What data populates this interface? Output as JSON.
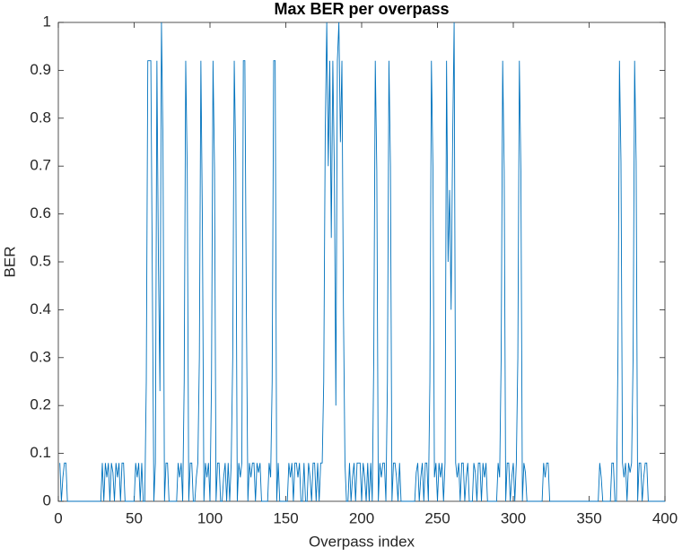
{
  "chart_data": {
    "type": "line",
    "title": "Max BER per overpass",
    "xlabel": "Overpass index",
    "ylabel": "BER",
    "x": [
      1,
      2,
      3,
      4,
      5,
      6,
      7,
      8,
      9,
      10,
      11,
      12,
      13,
      14,
      15,
      16,
      17,
      18,
      19,
      20,
      21,
      22,
      23,
      24,
      25,
      26,
      27,
      28,
      29,
      30,
      31,
      32,
      33,
      34,
      35,
      36,
      37,
      38,
      39,
      40,
      41,
      42,
      43,
      44,
      45,
      46,
      47,
      48,
      49,
      50,
      51,
      52,
      53,
      54,
      55,
      56,
      57,
      58,
      59,
      60,
      61,
      62,
      63,
      64,
      65,
      66,
      67,
      68,
      69,
      70,
      71,
      72,
      73,
      74,
      75,
      76,
      77,
      78,
      79,
      80,
      81,
      82,
      83,
      84,
      85,
      86,
      87,
      88,
      89,
      90,
      91,
      92,
      93,
      94,
      95,
      96,
      97,
      98,
      99,
      100,
      101,
      102,
      103,
      104,
      105,
      106,
      107,
      108,
      109,
      110,
      111,
      112,
      113,
      114,
      115,
      116,
      117,
      118,
      119,
      120,
      121,
      122,
      123,
      124,
      125,
      126,
      127,
      128,
      129,
      130,
      131,
      132,
      133,
      134,
      135,
      136,
      137,
      138,
      139,
      140,
      141,
      142,
      143,
      144,
      145,
      146,
      147,
      148,
      149,
      150,
      151,
      152,
      153,
      154,
      155,
      156,
      157,
      158,
      159,
      160,
      161,
      162,
      163,
      164,
      165,
      166,
      167,
      168,
      169,
      170,
      171,
      172,
      173,
      174,
      175,
      176,
      177,
      178,
      179,
      180,
      181,
      182,
      183,
      184,
      185,
      186,
      187,
      188,
      189,
      190,
      191,
      192,
      193,
      194,
      195,
      196,
      197,
      198,
      199,
      200,
      201,
      202,
      203,
      204,
      205,
      206,
      207,
      208,
      209,
      210,
      211,
      212,
      213,
      214,
      215,
      216,
      217,
      218,
      219,
      220,
      221,
      222,
      223,
      224,
      225,
      226,
      227,
      228,
      229,
      230,
      231,
      232,
      233,
      234,
      235,
      236,
      237,
      238,
      239,
      240,
      241,
      242,
      243,
      244,
      245,
      246,
      247,
      248,
      249,
      250,
      251,
      252,
      253,
      254,
      255,
      256,
      257,
      258,
      259,
      260,
      261,
      262,
      263,
      264,
      265,
      266,
      267,
      268,
      269,
      270,
      271,
      272,
      273,
      274,
      275,
      276,
      277,
      278,
      279,
      280,
      281,
      282,
      283,
      284,
      285,
      286,
      287,
      288,
      289,
      290,
      291,
      292,
      293,
      294,
      295,
      296,
      297,
      298,
      299,
      300,
      301,
      302,
      303,
      304,
      305,
      306,
      307,
      308,
      309,
      310,
      311,
      312,
      313,
      314,
      315,
      316,
      317,
      318,
      319,
      320,
      321,
      322,
      323,
      324,
      325,
      326,
      327,
      328,
      329,
      330,
      331,
      332,
      333,
      334,
      335,
      336,
      337,
      338,
      339,
      340,
      341,
      342,
      343,
      344,
      345,
      346,
      347,
      348,
      349,
      350,
      351,
      352,
      353,
      354,
      355,
      356,
      357,
      358,
      359,
      360,
      361,
      362,
      363,
      364,
      365,
      366,
      367,
      368,
      369,
      370,
      371,
      372,
      373,
      374,
      375,
      376,
      377,
      378,
      379,
      380,
      381,
      382,
      383,
      384,
      385,
      386,
      387,
      388,
      389,
      390,
      391,
      392,
      393,
      394,
      395,
      396,
      397,
      398,
      399,
      400
    ],
    "series": [
      {
        "color": "#0072bd",
        "values": [
          0.08,
          0,
          0.05,
          0.08,
          0.08,
          0,
          0,
          0,
          0,
          0,
          0,
          0,
          0,
          0,
          0,
          0,
          0,
          0,
          0,
          0,
          0,
          0,
          0,
          0,
          0,
          0,
          0,
          0,
          0.08,
          0,
          0.08,
          0.05,
          0.08,
          0,
          0.08,
          0.06,
          0,
          0.08,
          0.05,
          0.08,
          0,
          0.08,
          0.08,
          0,
          0,
          0,
          0,
          0,
          0,
          0,
          0.08,
          0.05,
          0.08,
          0,
          0.08,
          0,
          0,
          0.25,
          0.92,
          0.92,
          0.92,
          0.46,
          0,
          0.08,
          0.92,
          0.5,
          0.23,
          1,
          0.75,
          0,
          0.08,
          0.08,
          0,
          0,
          0,
          0,
          0,
          0,
          0.08,
          0.05,
          0.08,
          0,
          0.25,
          0.92,
          0.69,
          0,
          0.08,
          0.08,
          0,
          0,
          0.05,
          0.08,
          0.3,
          0.92,
          0.58,
          0,
          0.08,
          0.05,
          0.08,
          0,
          0.25,
          0.92,
          0.69,
          0,
          0.08,
          0.08,
          0,
          0,
          0.05,
          0.08,
          0,
          0.08,
          0,
          0.08,
          0.3,
          0.92,
          0.71,
          0,
          0.08,
          0.05,
          0.08,
          0.92,
          0.92,
          0.4,
          0,
          0.08,
          0.05,
          0.08,
          0.08,
          0,
          0.08,
          0.06,
          0.08,
          0,
          0,
          0,
          0,
          0,
          0.08,
          0.05,
          0.25,
          0.92,
          0.92,
          0,
          0.08,
          0,
          0,
          0,
          0,
          0,
          0,
          0.08,
          0.05,
          0.08,
          0,
          0.08,
          0.08,
          0.05,
          0.08,
          0,
          0,
          0.08,
          0,
          0,
          0.08,
          0.05,
          0,
          0.08,
          0.08,
          0,
          0.08,
          0,
          0.08,
          0.08,
          0.25,
          0.77,
          1,
          0.7,
          0.92,
          0.55,
          0.92,
          0.69,
          0.2,
          0.92,
          1,
          0.75,
          0.92,
          0.4,
          0.08,
          0,
          0,
          0.08,
          0,
          0.05,
          0.08,
          0,
          0.08,
          0.08,
          0.08,
          0,
          0.08,
          0.05,
          0,
          0.08,
          0,
          0.08,
          0,
          0.3,
          0.92,
          0.69,
          0,
          0.08,
          0.05,
          0.08,
          0.08,
          0,
          0.25,
          0.92,
          0.7,
          0,
          0.08,
          0.08,
          0.05,
          0,
          0.08,
          0,
          0,
          0,
          0,
          0,
          0,
          0,
          0,
          0,
          0,
          0.06,
          0.08,
          0,
          0.05,
          0.08,
          0,
          0.08,
          0.08,
          0,
          0.25,
          0.92,
          0.7,
          0.05,
          0.08,
          0,
          0.08,
          0.05,
          0.08,
          0,
          0.08,
          0.92,
          0.5,
          0.65,
          0.4,
          0.75,
          1,
          0.08,
          0.05,
          0.08,
          0,
          0.08,
          0.08,
          0,
          0.05,
          0.08,
          0,
          0,
          0,
          0.08,
          0.06,
          0,
          0.08,
          0.08,
          0,
          0.08,
          0.05,
          0.08,
          0,
          0,
          0,
          0,
          0,
          0,
          0,
          0.08,
          0.05,
          0.3,
          0.92,
          0.69,
          0,
          0.08,
          0.08,
          0,
          0.05,
          0.08,
          0,
          0.08,
          0.3,
          0.92,
          0.69,
          0,
          0.08,
          0.06,
          0,
          0,
          0,
          0,
          0,
          0,
          0,
          0,
          0,
          0,
          0,
          0.08,
          0.05,
          0.08,
          0.08,
          0,
          0,
          0,
          0,
          0,
          0,
          0,
          0,
          0,
          0,
          0,
          0,
          0,
          0,
          0,
          0,
          0,
          0,
          0,
          0,
          0,
          0,
          0,
          0,
          0,
          0,
          0,
          0,
          0,
          0,
          0,
          0,
          0,
          0.08,
          0.05,
          0,
          0,
          0,
          0,
          0,
          0,
          0.08,
          0.08,
          0,
          0,
          0.3,
          0.92,
          0.71,
          0.08,
          0.05,
          0.08,
          0,
          0.08,
          0.06,
          0.08,
          0.3,
          0.92,
          0.71,
          0,
          0.08,
          0.08,
          0,
          0.05,
          0.08,
          0.08,
          0,
          0,
          0,
          0,
          0,
          0,
          0,
          0,
          0,
          0,
          0,
          0
        ]
      }
    ],
    "xlim": [
      0,
      400
    ],
    "ylim": [
      0,
      1
    ],
    "xticks": [
      0,
      50,
      100,
      150,
      200,
      250,
      300,
      350,
      400
    ],
    "yticks": [
      0,
      0.1,
      0.2,
      0.3,
      0.4,
      0.5,
      0.6,
      0.7,
      0.8,
      0.9,
      1
    ]
  }
}
